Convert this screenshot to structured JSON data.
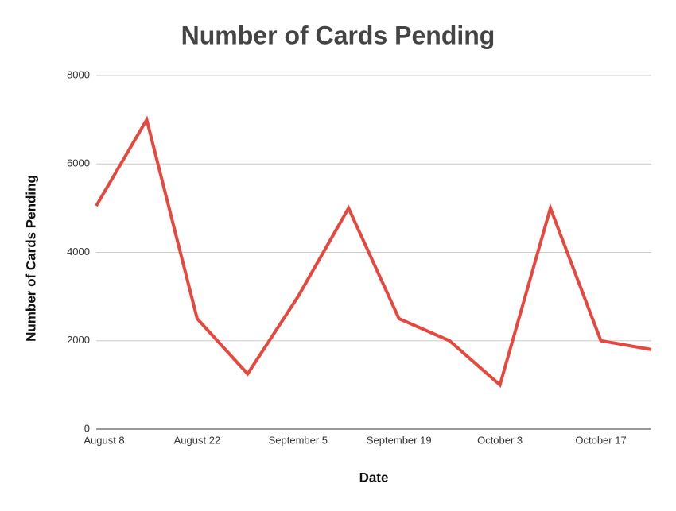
{
  "chart_data": {
    "type": "line",
    "title": "Number of Cards Pending",
    "x_label": "Date",
    "y_label": "Number of Cards Pending",
    "categories": [
      "August 8",
      null,
      "August 22",
      null,
      "September 5",
      null,
      "September 19",
      null,
      "October 3",
      null,
      "October 17",
      null
    ],
    "series": [
      {
        "name": "Number of Cards Pending",
        "color": "#e8473d",
        "values": [
          5050,
          7000,
          2500,
          1250,
          3000,
          5000,
          2500,
          2000,
          1000,
          5000,
          2000,
          1800
        ]
      }
    ],
    "ylim": [
      0,
      8000
    ],
    "yticks": [
      0,
      2000,
      4000,
      6000,
      8000
    ],
    "grid": true
  }
}
